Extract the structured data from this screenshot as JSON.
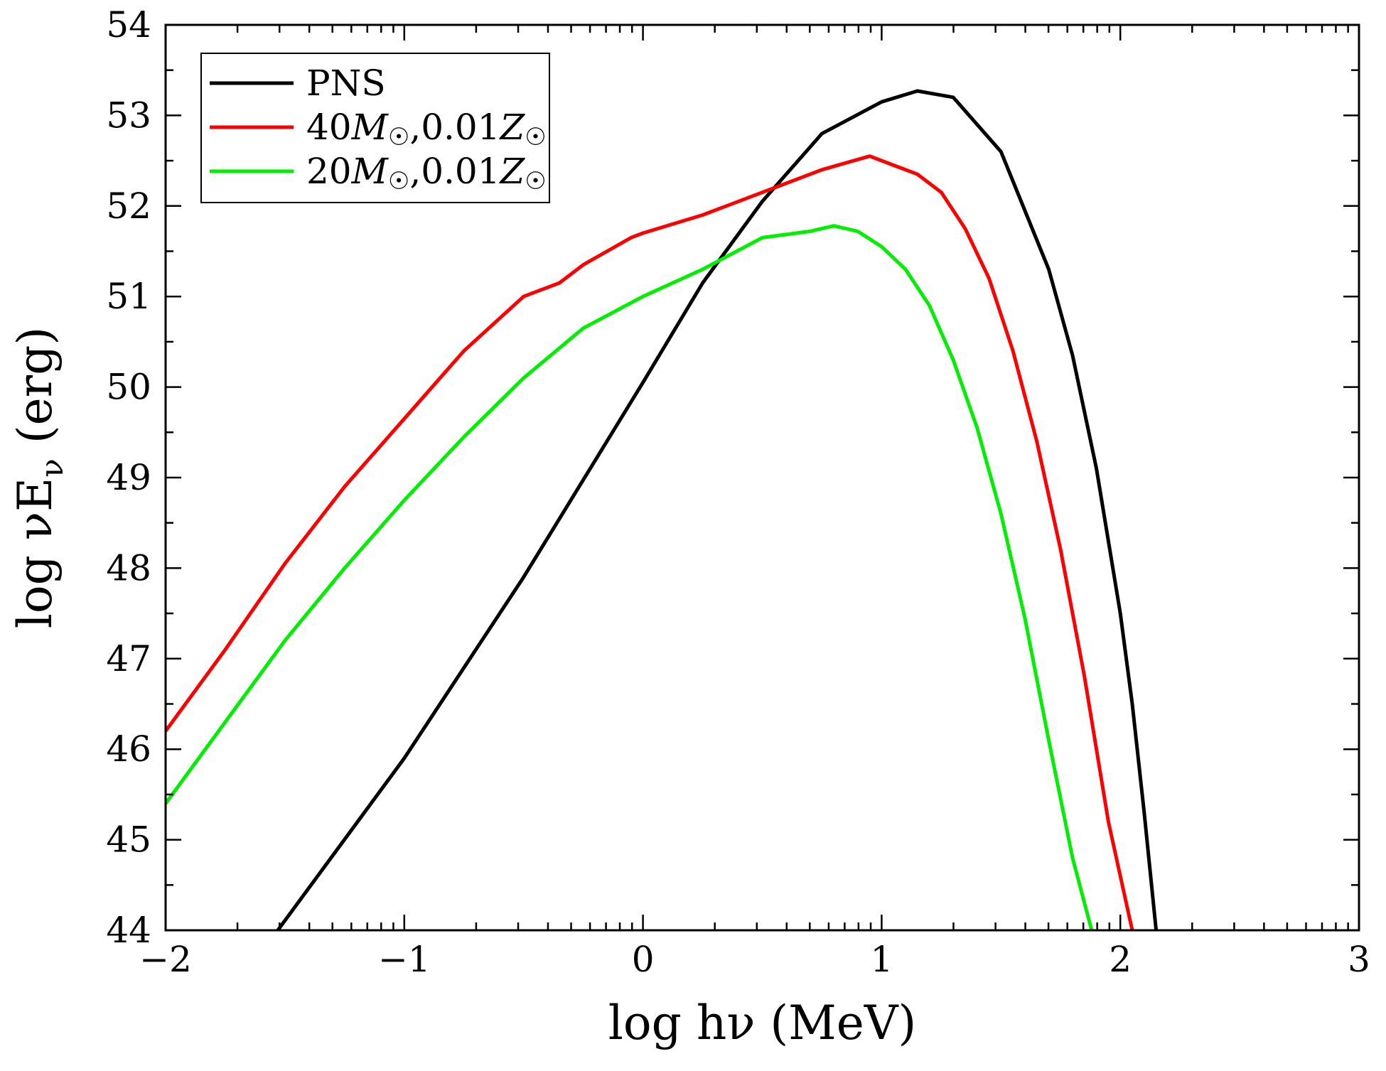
{
  "chart_data": {
    "type": "line",
    "title": "",
    "xlabel": "log hν  (MeV)",
    "ylabel_main": "log νE",
    "ylabel_sub": "ν",
    "ylabel_unit": " (erg)",
    "xlim": [
      -2,
      3
    ],
    "ylim": [
      44,
      54
    ],
    "xticks": [
      -2,
      -1,
      0,
      1,
      2,
      3
    ],
    "xtick_labels": [
      "−2",
      "−1",
      "0",
      "1",
      "2",
      "3"
    ],
    "yticks": [
      44,
      45,
      46,
      47,
      48,
      49,
      50,
      51,
      52,
      53,
      54
    ],
    "ytick_labels": [
      "44",
      "45",
      "46",
      "47",
      "48",
      "49",
      "50",
      "51",
      "52",
      "53",
      "54"
    ],
    "grid": false,
    "legend_position": "top-left",
    "series": [
      {
        "name": "PNS",
        "label_parts": [
          {
            "t": "PNS",
            "i": false
          }
        ],
        "color": "#000000",
        "x": [
          -1.53,
          -1.0,
          -0.5,
          0.0,
          0.25,
          0.5,
          0.75,
          1.0,
          1.15,
          1.3,
          1.5,
          1.7,
          1.8,
          1.9,
          2.0,
          2.05,
          2.1,
          2.15
        ],
        "y": [
          44.0,
          45.9,
          47.9,
          50.05,
          51.15,
          52.05,
          52.8,
          53.15,
          53.27,
          53.2,
          52.6,
          51.3,
          50.35,
          49.1,
          47.5,
          46.5,
          45.3,
          44.0
        ]
      },
      {
        "name": "40M☉,0.01Z☉",
        "label_parts": [
          {
            "t": "40",
            "i": false
          },
          {
            "t": "M",
            "i": true
          },
          {
            "t": "☉",
            "i": false,
            "sub": true
          },
          {
            "t": ",0.01",
            "i": false
          },
          {
            "t": "Z",
            "i": true
          },
          {
            "t": "☉",
            "i": false,
            "sub": true
          }
        ],
        "color": "#ff0000",
        "x": [
          -2.0,
          -1.75,
          -1.5,
          -1.25,
          -1.0,
          -0.75,
          -0.5,
          -0.35,
          -0.25,
          -0.15,
          -0.05,
          0.0,
          0.25,
          0.5,
          0.75,
          0.95,
          1.05,
          1.15,
          1.25,
          1.35,
          1.45,
          1.55,
          1.65,
          1.75,
          1.85,
          1.95,
          2.0,
          2.05
        ],
        "y": [
          46.2,
          47.1,
          48.05,
          48.9,
          49.65,
          50.4,
          51.0,
          51.15,
          51.35,
          51.5,
          51.65,
          51.7,
          51.9,
          52.15,
          52.4,
          52.55,
          52.45,
          52.35,
          52.15,
          51.75,
          51.2,
          50.4,
          49.4,
          48.2,
          46.8,
          45.2,
          44.6,
          44.0
        ]
      },
      {
        "name": "20M☉,0.01Z☉",
        "label_parts": [
          {
            "t": "20",
            "i": false
          },
          {
            "t": "M",
            "i": true
          },
          {
            "t": "☉",
            "i": false,
            "sub": true
          },
          {
            "t": ",0.01",
            "i": false
          },
          {
            "t": "Z",
            "i": true
          },
          {
            "t": "☉",
            "i": false,
            "sub": true
          }
        ],
        "color": "#00ee00",
        "x": [
          -2.0,
          -1.75,
          -1.5,
          -1.25,
          -1.0,
          -0.75,
          -0.5,
          -0.25,
          0.0,
          0.25,
          0.5,
          0.7,
          0.8,
          0.9,
          1.0,
          1.1,
          1.2,
          1.3,
          1.4,
          1.5,
          1.6,
          1.7,
          1.8,
          1.85,
          1.88
        ],
        "y": [
          45.4,
          46.3,
          47.2,
          48.0,
          48.75,
          49.45,
          50.1,
          50.65,
          51.0,
          51.3,
          51.65,
          51.72,
          51.78,
          51.72,
          51.55,
          51.3,
          50.9,
          50.3,
          49.55,
          48.6,
          47.45,
          46.1,
          44.8,
          44.3,
          44.0
        ]
      }
    ]
  }
}
